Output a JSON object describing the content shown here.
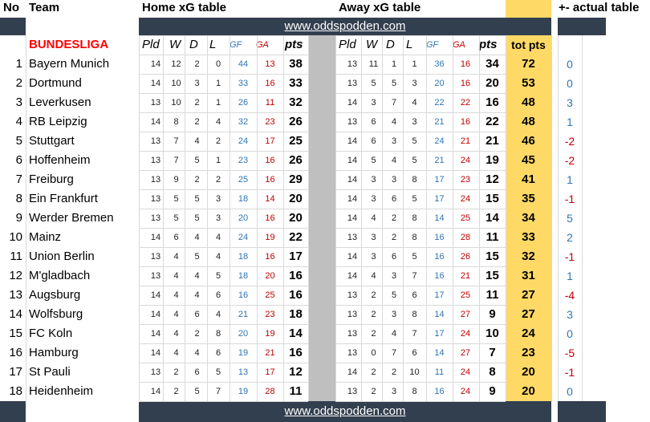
{
  "headers": {
    "no": "No",
    "team": "Team",
    "home_title": "Home xG table",
    "away_title": "Away xG table",
    "actual_title": "+- actual table",
    "league": "BUNDESLIGA",
    "website": "www.oddspodden.com"
  },
  "columns": {
    "pld": "Pld",
    "w": "W",
    "d": "D",
    "l": "L",
    "gf": "GF",
    "ga": "GA",
    "pts": "pts",
    "tot": "tot pts"
  },
  "colors": {
    "dark_band": "#323f4f",
    "yellow": "#ffd966",
    "gray_divider": "#bfbfbf",
    "league_red": "#ff0000",
    "gf_blue": "#2e75b6",
    "ga_red": "#c00000",
    "positive_blue": "#2e75b6",
    "negative_red": "#c00000"
  },
  "rows": [
    {
      "no": "1",
      "team": "Bayern Munich",
      "h": [
        "14",
        "12",
        "2",
        "0",
        "44",
        "13",
        "38"
      ],
      "a": [
        "13",
        "11",
        "1",
        "1",
        "36",
        "16",
        "34"
      ],
      "tot": "72",
      "diff": "0"
    },
    {
      "no": "2",
      "team": "Dortmund",
      "h": [
        "14",
        "10",
        "3",
        "1",
        "33",
        "16",
        "33"
      ],
      "a": [
        "13",
        "5",
        "5",
        "3",
        "20",
        "16",
        "20"
      ],
      "tot": "53",
      "diff": "0"
    },
    {
      "no": "3",
      "team": "Leverkusen",
      "h": [
        "13",
        "10",
        "2",
        "1",
        "26",
        "11",
        "32"
      ],
      "a": [
        "14",
        "3",
        "7",
        "4",
        "22",
        "22",
        "16"
      ],
      "tot": "48",
      "diff": "3"
    },
    {
      "no": "4",
      "team": "RB Leipzig",
      "h": [
        "14",
        "8",
        "2",
        "4",
        "32",
        "23",
        "26"
      ],
      "a": [
        "13",
        "6",
        "4",
        "3",
        "21",
        "16",
        "22"
      ],
      "tot": "48",
      "diff": "1"
    },
    {
      "no": "5",
      "team": "Stuttgart",
      "h": [
        "13",
        "7",
        "4",
        "2",
        "24",
        "17",
        "25"
      ],
      "a": [
        "14",
        "6",
        "3",
        "5",
        "24",
        "21",
        "21"
      ],
      "tot": "46",
      "diff": "-2"
    },
    {
      "no": "6",
      "team": "Hoffenheim",
      "h": [
        "13",
        "7",
        "5",
        "1",
        "23",
        "16",
        "26"
      ],
      "a": [
        "14",
        "5",
        "4",
        "5",
        "21",
        "24",
        "19"
      ],
      "tot": "45",
      "diff": "-2"
    },
    {
      "no": "7",
      "team": "Freiburg",
      "h": [
        "13",
        "9",
        "2",
        "2",
        "25",
        "16",
        "29"
      ],
      "a": [
        "14",
        "3",
        "3",
        "8",
        "17",
        "23",
        "12"
      ],
      "tot": "41",
      "diff": "1"
    },
    {
      "no": "8",
      "team": "Ein Frankfurt",
      "h": [
        "13",
        "5",
        "5",
        "3",
        "18",
        "14",
        "20"
      ],
      "a": [
        "14",
        "3",
        "6",
        "5",
        "17",
        "24",
        "15"
      ],
      "tot": "35",
      "diff": "-1"
    },
    {
      "no": "9",
      "team": "Werder Bremen",
      "h": [
        "13",
        "5",
        "5",
        "3",
        "20",
        "16",
        "20"
      ],
      "a": [
        "14",
        "4",
        "2",
        "8",
        "14",
        "25",
        "14"
      ],
      "tot": "34",
      "diff": "5"
    },
    {
      "no": "10",
      "team": "Mainz",
      "h": [
        "14",
        "6",
        "4",
        "4",
        "24",
        "19",
        "22"
      ],
      "a": [
        "13",
        "3",
        "2",
        "8",
        "16",
        "28",
        "11"
      ],
      "tot": "33",
      "diff": "2"
    },
    {
      "no": "11",
      "team": "Union Berlin",
      "h": [
        "13",
        "4",
        "5",
        "4",
        "18",
        "16",
        "17"
      ],
      "a": [
        "14",
        "3",
        "6",
        "5",
        "16",
        "26",
        "15"
      ],
      "tot": "32",
      "diff": "-1"
    },
    {
      "no": "12",
      "team": "M'gladbach",
      "h": [
        "13",
        "4",
        "4",
        "5",
        "18",
        "20",
        "16"
      ],
      "a": [
        "14",
        "4",
        "3",
        "7",
        "16",
        "21",
        "15"
      ],
      "tot": "31",
      "diff": "1"
    },
    {
      "no": "13",
      "team": "Augsburg",
      "h": [
        "14",
        "4",
        "4",
        "6",
        "16",
        "25",
        "16"
      ],
      "a": [
        "13",
        "2",
        "5",
        "6",
        "17",
        "25",
        "11"
      ],
      "tot": "27",
      "diff": "-4"
    },
    {
      "no": "14",
      "team": "Wolfsburg",
      "h": [
        "14",
        "4",
        "6",
        "4",
        "21",
        "23",
        "18"
      ],
      "a": [
        "13",
        "2",
        "3",
        "8",
        "14",
        "27",
        "9"
      ],
      "tot": "27",
      "diff": "3"
    },
    {
      "no": "15",
      "team": "FC Koln",
      "h": [
        "14",
        "4",
        "2",
        "8",
        "20",
        "19",
        "14"
      ],
      "a": [
        "13",
        "2",
        "4",
        "7",
        "17",
        "24",
        "10"
      ],
      "tot": "24",
      "diff": "0"
    },
    {
      "no": "16",
      "team": "Hamburg",
      "h": [
        "14",
        "4",
        "4",
        "6",
        "19",
        "21",
        "16"
      ],
      "a": [
        "13",
        "0",
        "7",
        "6",
        "14",
        "27",
        "7"
      ],
      "tot": "23",
      "diff": "-5"
    },
    {
      "no": "17",
      "team": "St Pauli",
      "h": [
        "13",
        "2",
        "6",
        "5",
        "13",
        "17",
        "12"
      ],
      "a": [
        "14",
        "2",
        "2",
        "10",
        "11",
        "24",
        "8"
      ],
      "tot": "20",
      "diff": "-1"
    },
    {
      "no": "18",
      "team": "Heidenheim",
      "h": [
        "14",
        "2",
        "5",
        "7",
        "19",
        "28",
        "11"
      ],
      "a": [
        "13",
        "2",
        "3",
        "8",
        "16",
        "24",
        "9"
      ],
      "tot": "20",
      "diff": "0"
    }
  ]
}
